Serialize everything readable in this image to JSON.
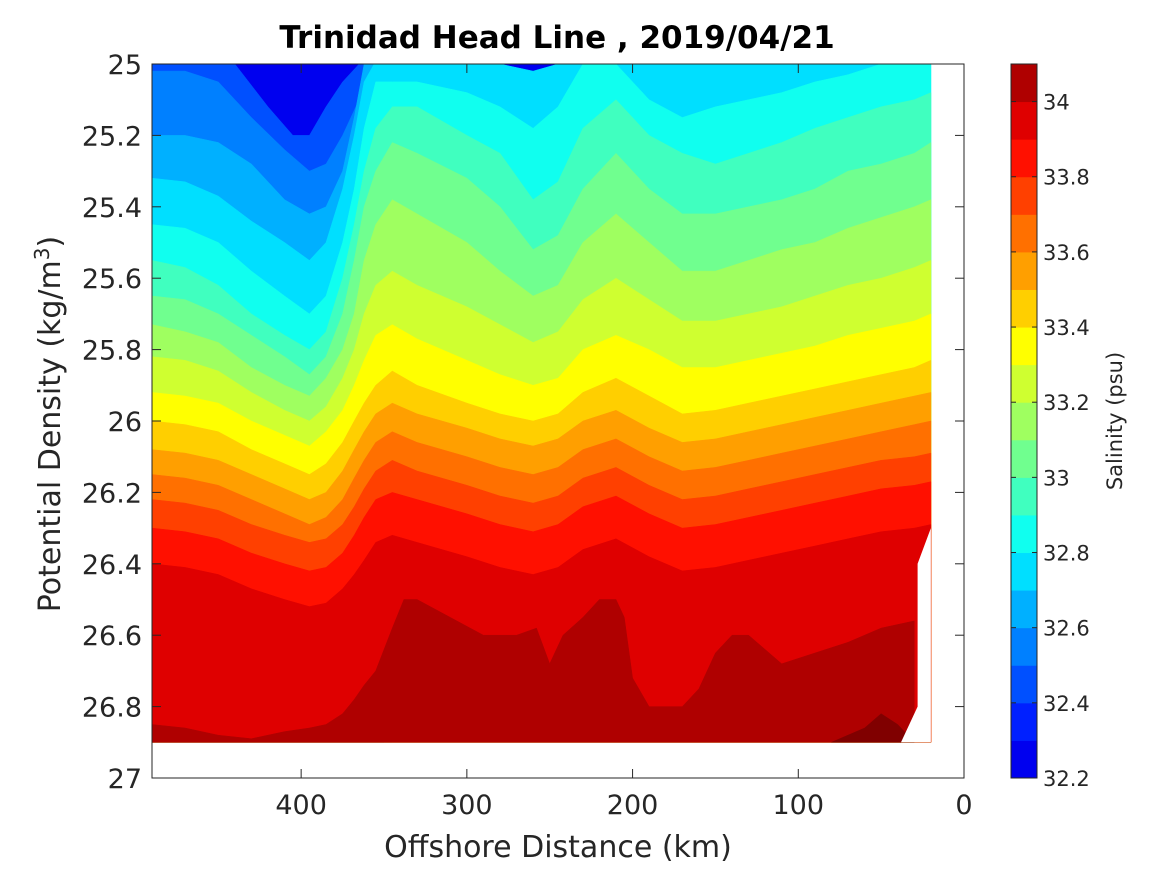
{
  "chart_data": {
    "type": "heatmap",
    "subtype": "filled-contour",
    "title": "Trinidad Head Line , 2019/04/21",
    "xlabel": "Offshore Distance (km)",
    "ylabel_prefix": "Potential Density (kg/m",
    "ylabel_exp": "3",
    "ylabel_suffix": ")",
    "colorbar_label": "Salinity (psu)",
    "x_reversed": true,
    "xlim": [
      490,
      0
    ],
    "ylim": [
      25,
      27
    ],
    "y_reversed": true,
    "xticks": [
      400,
      300,
      200,
      100,
      0
    ],
    "xtick_labels": [
      "400",
      "300",
      "200",
      "100",
      "0"
    ],
    "yticks": [
      25,
      25.2,
      25.4,
      25.6,
      25.8,
      26,
      26.2,
      26.4,
      26.6,
      26.8,
      27
    ],
    "ytick_labels": [
      "25",
      "25.2",
      "25.4",
      "25.6",
      "25.8",
      "26",
      "26.2",
      "26.4",
      "26.6",
      "26.8",
      "27"
    ],
    "colorbar_range": [
      32.2,
      34.1
    ],
    "colorbar_ticks": [
      32.2,
      32.4,
      32.6,
      32.8,
      33,
      33.2,
      33.4,
      33.6,
      33.8,
      34
    ],
    "colorbar_tick_labels": [
      "32.2",
      "32.4",
      "32.6",
      "32.8",
      "33",
      "33.2",
      "33.4",
      "33.6",
      "33.8",
      "34"
    ],
    "levels": [
      32.2,
      32.3,
      32.4,
      32.5,
      32.6,
      32.7,
      32.8,
      32.9,
      33.0,
      33.1,
      33.2,
      33.3,
      33.4,
      33.5,
      33.6,
      33.7,
      33.8,
      33.9,
      34.0,
      34.1
    ],
    "colormap": [
      "#00008f",
      "#0000bf",
      "#0000ef",
      "#0020ff",
      "#0050ff",
      "#0080ff",
      "#00b0ff",
      "#00dfff",
      "#10ffef",
      "#40ffbf",
      "#70ff8f",
      "#9fff60",
      "#cfff30",
      "#ffff00",
      "#ffcf00",
      "#ff9f00",
      "#ff7000",
      "#ff4000",
      "#ff1000",
      "#df0000",
      "#af0000",
      "#800000"
    ],
    "data_extent": {
      "x_min": 20,
      "x_max": 490,
      "y_min": 25,
      "y_max": 26.9
    },
    "isohalines": [
      {
        "s": 32.4,
        "x": [
          490,
          470,
          440,
          420,
          405,
          395,
          385,
          375,
          365,
          350
        ],
        "y": [
          25.0,
          25.0,
          25.0,
          25.12,
          25.2,
          25.2,
          25.12,
          25.05,
          25.0,
          25.0
        ]
      },
      {
        "s": 32.5,
        "x": [
          490,
          470,
          450,
          430,
          410,
          395,
          385,
          375,
          365,
          357,
          345
        ],
        "y": [
          25.02,
          25.02,
          25.05,
          25.15,
          25.24,
          25.3,
          25.28,
          25.2,
          25.1,
          25.0,
          25.0
        ]
      },
      {
        "s": 32.6,
        "x": [
          490,
          470,
          450,
          430,
          410,
          395,
          385,
          375,
          368,
          362,
          350
        ],
        "y": [
          25.2,
          25.2,
          25.22,
          25.28,
          25.38,
          25.42,
          25.4,
          25.3,
          25.15,
          25.0,
          25.0
        ]
      },
      {
        "s": 32.7,
        "x": [
          490,
          470,
          450,
          430,
          410,
          395,
          385,
          375,
          368,
          362,
          356,
          350,
          330,
          300,
          280,
          260,
          245,
          230,
          210,
          190,
          170,
          150,
          130,
          110,
          90,
          70,
          50,
          30,
          20
        ],
        "y": [
          25.32,
          25.33,
          25.37,
          25.44,
          25.5,
          25.55,
          25.5,
          25.35,
          25.2,
          25.05,
          25.0,
          25.0,
          25.0,
          25.0,
          25.0,
          25.02,
          25.0,
          25.0,
          25.0,
          25.0,
          25.0,
          25.0,
          25.0,
          25.0,
          25.0,
          25.0,
          25.0,
          25.0,
          25.0
        ]
      },
      {
        "s": 32.8,
        "x": [
          490,
          470,
          450,
          430,
          410,
          395,
          385,
          375,
          368,
          362,
          355,
          345,
          330,
          300,
          280,
          260,
          245,
          230,
          210,
          190,
          170,
          150,
          130,
          110,
          90,
          70,
          50,
          30,
          20
        ],
        "y": [
          25.45,
          25.46,
          25.5,
          25.58,
          25.65,
          25.7,
          25.65,
          25.5,
          25.35,
          25.18,
          25.05,
          25.05,
          25.05,
          25.08,
          25.12,
          25.18,
          25.12,
          25.0,
          25.0,
          25.1,
          25.15,
          25.12,
          25.1,
          25.08,
          25.05,
          25.03,
          25.0,
          25.0,
          25.0
        ]
      },
      {
        "s": 32.9,
        "x": [
          490,
          470,
          450,
          430,
          410,
          395,
          385,
          375,
          368,
          362,
          355,
          345,
          330,
          300,
          280,
          260,
          245,
          230,
          210,
          190,
          170,
          150,
          130,
          110,
          90,
          70,
          50,
          30,
          20
        ],
        "y": [
          25.55,
          25.57,
          25.62,
          25.7,
          25.76,
          25.8,
          25.75,
          25.6,
          25.45,
          25.3,
          25.18,
          25.12,
          25.12,
          25.2,
          25.25,
          25.38,
          25.33,
          25.18,
          25.1,
          25.2,
          25.25,
          25.28,
          25.25,
          25.22,
          25.18,
          25.15,
          25.12,
          25.1,
          25.08
        ]
      },
      {
        "s": 33.0,
        "x": [
          490,
          470,
          450,
          430,
          410,
          395,
          385,
          375,
          368,
          362,
          355,
          345,
          330,
          300,
          280,
          260,
          245,
          230,
          210,
          190,
          170,
          150,
          130,
          110,
          90,
          70,
          50,
          30,
          20
        ],
        "y": [
          25.65,
          25.66,
          25.7,
          25.76,
          25.82,
          25.87,
          25.82,
          25.7,
          25.55,
          25.4,
          25.3,
          25.22,
          25.25,
          25.32,
          25.4,
          25.52,
          25.48,
          25.35,
          25.25,
          25.35,
          25.42,
          25.42,
          25.4,
          25.38,
          25.35,
          25.3,
          25.28,
          25.25,
          25.22
        ]
      },
      {
        "s": 33.1,
        "x": [
          490,
          470,
          450,
          430,
          410,
          395,
          385,
          375,
          368,
          362,
          355,
          345,
          330,
          300,
          280,
          260,
          245,
          230,
          210,
          190,
          170,
          150,
          130,
          110,
          90,
          70,
          50,
          30,
          20
        ],
        "y": [
          25.73,
          25.75,
          25.78,
          25.85,
          25.9,
          25.93,
          25.88,
          25.8,
          25.7,
          25.55,
          25.45,
          25.38,
          25.42,
          25.5,
          25.58,
          25.65,
          25.62,
          25.5,
          25.42,
          25.5,
          25.58,
          25.58,
          25.55,
          25.52,
          25.5,
          25.46,
          25.43,
          25.4,
          25.38
        ]
      },
      {
        "s": 33.2,
        "x": [
          490,
          470,
          450,
          430,
          410,
          395,
          385,
          375,
          368,
          362,
          355,
          345,
          330,
          300,
          280,
          260,
          245,
          230,
          210,
          190,
          170,
          150,
          130,
          110,
          90,
          70,
          50,
          30,
          20
        ],
        "y": [
          25.82,
          25.83,
          25.86,
          25.92,
          25.97,
          26.0,
          25.96,
          25.88,
          25.8,
          25.7,
          25.62,
          25.58,
          25.62,
          25.68,
          25.73,
          25.78,
          25.75,
          25.66,
          25.6,
          25.66,
          25.72,
          25.72,
          25.7,
          25.68,
          25.65,
          25.62,
          25.6,
          25.57,
          25.55
        ]
      },
      {
        "s": 33.3,
        "x": [
          490,
          470,
          450,
          430,
          410,
          395,
          385,
          375,
          368,
          362,
          355,
          345,
          330,
          300,
          280,
          260,
          245,
          230,
          210,
          190,
          170,
          150,
          130,
          110,
          90,
          70,
          50,
          30,
          20
        ],
        "y": [
          25.92,
          25.93,
          25.95,
          26.0,
          26.04,
          26.07,
          26.03,
          25.97,
          25.9,
          25.83,
          25.76,
          25.73,
          25.77,
          25.83,
          25.87,
          25.9,
          25.88,
          25.8,
          25.76,
          25.8,
          25.85,
          25.85,
          25.83,
          25.81,
          25.79,
          25.76,
          25.74,
          25.72,
          25.7
        ]
      },
      {
        "s": 33.4,
        "x": [
          490,
          470,
          450,
          430,
          410,
          395,
          385,
          375,
          368,
          362,
          355,
          345,
          330,
          300,
          280,
          260,
          245,
          230,
          210,
          190,
          170,
          150,
          130,
          110,
          90,
          70,
          50,
          30,
          20
        ],
        "y": [
          26.0,
          26.01,
          26.03,
          26.08,
          26.12,
          26.15,
          26.12,
          26.06,
          26.0,
          25.95,
          25.9,
          25.86,
          25.9,
          25.95,
          25.98,
          26.0,
          25.98,
          25.92,
          25.88,
          25.93,
          25.98,
          25.97,
          25.95,
          25.93,
          25.91,
          25.89,
          25.87,
          25.85,
          25.83
        ]
      },
      {
        "s": 33.5,
        "x": [
          490,
          470,
          450,
          430,
          410,
          395,
          385,
          375,
          368,
          362,
          355,
          345,
          330,
          300,
          280,
          260,
          245,
          230,
          210,
          190,
          170,
          150,
          130,
          110,
          90,
          70,
          50,
          30,
          20
        ],
        "y": [
          26.08,
          26.09,
          26.11,
          26.15,
          26.19,
          26.22,
          26.2,
          26.14,
          26.08,
          26.03,
          25.98,
          25.95,
          25.98,
          26.02,
          26.05,
          26.07,
          26.05,
          26.0,
          25.97,
          26.02,
          26.06,
          26.05,
          26.03,
          26.01,
          25.99,
          25.97,
          25.95,
          25.93,
          25.92
        ]
      },
      {
        "s": 33.6,
        "x": [
          490,
          470,
          450,
          430,
          410,
          395,
          385,
          375,
          368,
          362,
          355,
          345,
          330,
          300,
          280,
          260,
          245,
          230,
          210,
          190,
          170,
          150,
          130,
          110,
          90,
          70,
          50,
          30,
          20
        ],
        "y": [
          26.15,
          26.16,
          26.18,
          26.22,
          26.26,
          26.29,
          26.27,
          26.22,
          26.16,
          26.11,
          26.06,
          26.03,
          26.06,
          26.1,
          26.13,
          26.15,
          26.13,
          26.08,
          26.05,
          26.1,
          26.14,
          26.13,
          26.11,
          26.09,
          26.07,
          26.05,
          26.03,
          26.01,
          26.0
        ]
      },
      {
        "s": 33.7,
        "x": [
          490,
          470,
          450,
          430,
          410,
          395,
          385,
          375,
          368,
          362,
          355,
          345,
          330,
          300,
          280,
          260,
          245,
          230,
          210,
          190,
          170,
          150,
          130,
          110,
          90,
          70,
          50,
          30,
          20
        ],
        "y": [
          26.22,
          26.23,
          26.25,
          26.29,
          26.32,
          26.34,
          26.33,
          26.29,
          26.24,
          26.19,
          26.14,
          26.11,
          26.14,
          26.18,
          26.21,
          26.23,
          26.21,
          26.16,
          26.13,
          26.18,
          26.22,
          26.21,
          26.19,
          26.17,
          26.15,
          26.13,
          26.11,
          26.1,
          26.09
        ]
      },
      {
        "s": 33.8,
        "x": [
          490,
          470,
          450,
          430,
          410,
          395,
          385,
          375,
          368,
          362,
          355,
          345,
          330,
          300,
          280,
          260,
          245,
          230,
          210,
          190,
          170,
          150,
          130,
          110,
          90,
          70,
          50,
          30,
          20
        ],
        "y": [
          26.3,
          26.31,
          26.33,
          26.37,
          26.4,
          26.42,
          26.41,
          26.37,
          26.32,
          26.27,
          26.22,
          26.2,
          26.22,
          26.26,
          26.29,
          26.31,
          26.29,
          26.24,
          26.21,
          26.26,
          26.3,
          26.29,
          26.27,
          26.25,
          26.23,
          26.21,
          26.19,
          26.18,
          26.17
        ]
      },
      {
        "s": 33.9,
        "x": [
          490,
          470,
          450,
          430,
          410,
          395,
          385,
          375,
          368,
          362,
          355,
          345,
          330,
          300,
          280,
          260,
          245,
          230,
          210,
          190,
          170,
          150,
          130,
          110,
          90,
          70,
          50,
          30,
          20
        ],
        "y": [
          26.4,
          26.41,
          26.43,
          26.47,
          26.5,
          26.52,
          26.51,
          26.47,
          26.43,
          26.39,
          26.34,
          26.32,
          26.34,
          26.38,
          26.41,
          26.43,
          26.41,
          26.36,
          26.33,
          26.38,
          26.42,
          26.41,
          26.39,
          26.37,
          26.35,
          26.33,
          26.31,
          26.3,
          26.29
        ]
      },
      {
        "s": 34.0,
        "x": [
          490,
          470,
          450,
          430,
          410,
          395,
          385,
          375,
          368,
          362,
          355,
          345,
          338,
          330,
          310,
          290,
          270,
          258,
          250,
          242,
          230,
          220,
          210,
          205,
          200,
          190,
          170,
          160,
          150,
          140,
          130,
          110,
          90,
          70,
          50,
          30
        ],
        "y": [
          26.85,
          26.86,
          26.88,
          26.89,
          26.87,
          26.86,
          26.85,
          26.82,
          26.78,
          26.74,
          26.7,
          26.58,
          26.5,
          26.5,
          26.55,
          26.6,
          26.6,
          26.58,
          26.68,
          26.6,
          26.55,
          26.5,
          26.5,
          26.55,
          26.72,
          26.8,
          26.8,
          26.75,
          26.65,
          26.6,
          26.6,
          26.68,
          26.65,
          26.62,
          26.58,
          26.56
        ]
      },
      {
        "s": 34.1,
        "x": [
          80,
          60,
          50,
          40,
          30
        ],
        "y": [
          26.9,
          26.86,
          26.82,
          26.85,
          26.9
        ]
      }
    ]
  }
}
